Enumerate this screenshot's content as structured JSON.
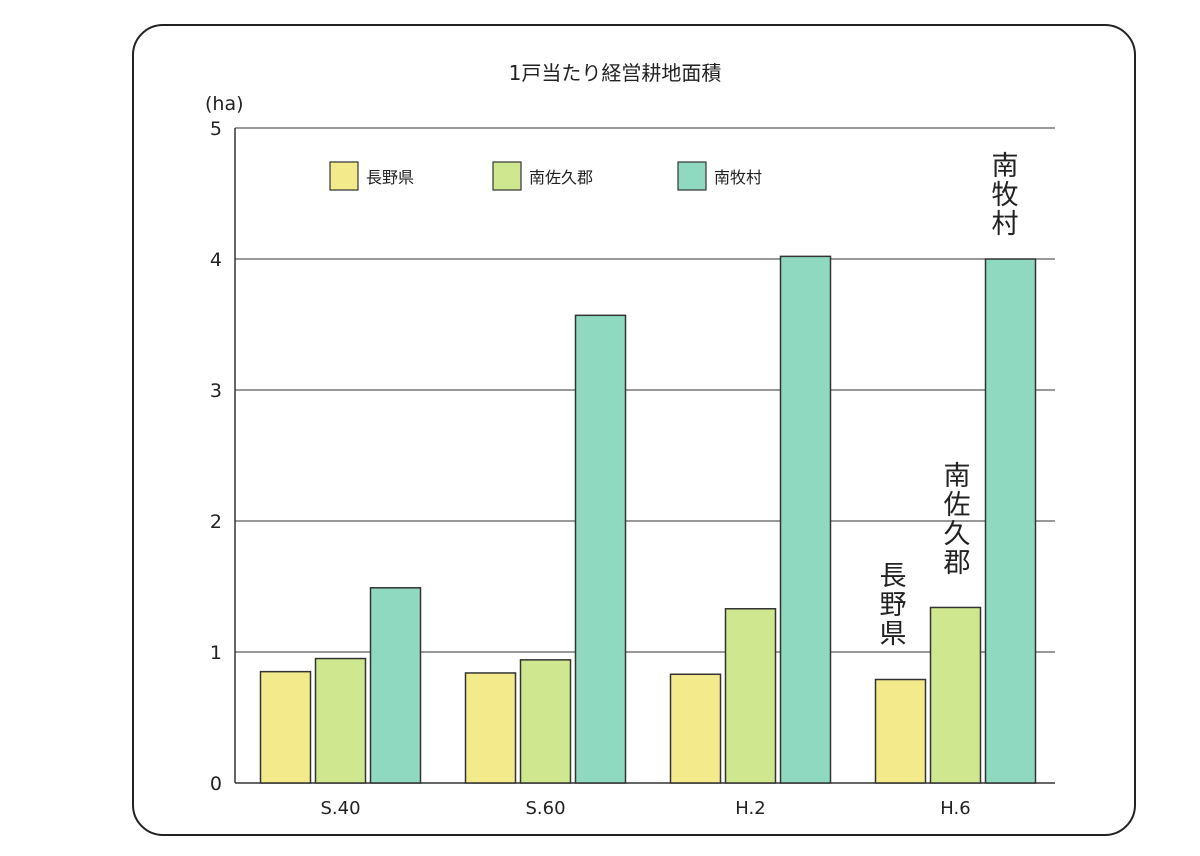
{
  "chart_data": {
    "type": "bar",
    "title": "1戸当たり経営耕地面積",
    "ylabel": "(ha)",
    "xlabel": "",
    "ylim": [
      0,
      5
    ],
    "yticks": [
      "0",
      "1",
      "2",
      "3",
      "4",
      "5"
    ],
    "grid": true,
    "legend_position": "top-left",
    "categories": [
      "S.40",
      "S.60",
      "H.2",
      "H.6"
    ],
    "series": [
      {
        "name": "長野県",
        "color": "#f3ea8c",
        "values": [
          0.85,
          0.84,
          0.83,
          0.79
        ]
      },
      {
        "name": "南佐久郡",
        "color": "#cfe890",
        "values": [
          0.95,
          0.94,
          1.33,
          1.34
        ]
      },
      {
        "name": "南牧村",
        "color": "#8fd9c1",
        "values": [
          1.49,
          3.57,
          4.02,
          4.0
        ]
      }
    ],
    "annotations": [
      "長野県",
      "南佐久郡",
      "南牧村"
    ]
  }
}
